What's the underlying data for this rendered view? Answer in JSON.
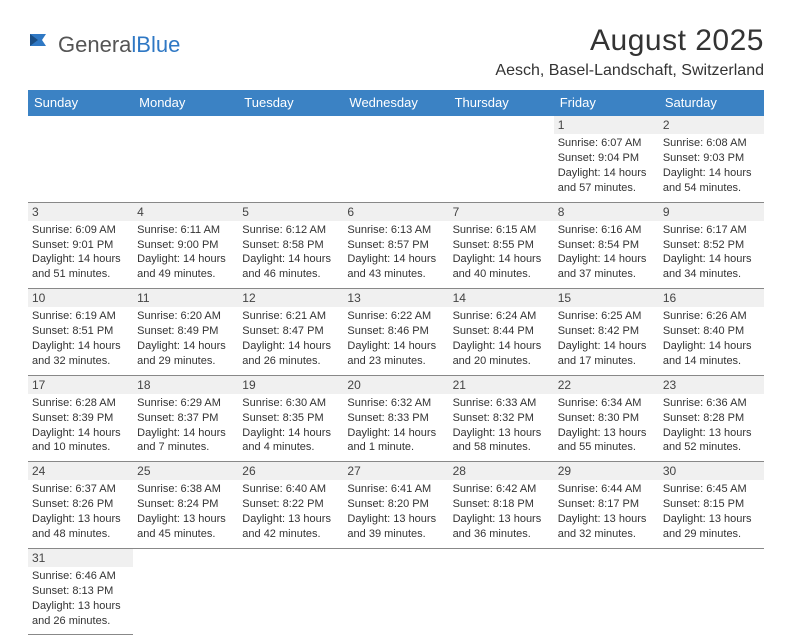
{
  "logo": {
    "text1": "Genera",
    "text2": "lBlue"
  },
  "title": "August 2025",
  "location": "Aesch, Basel-Landschaft, Switzerland",
  "colors": {
    "header_bg": "#3b82c4",
    "header_text": "#ffffff",
    "row_border": "#3b82c4",
    "daynum_bg": "#f0f0f0",
    "text": "#333333",
    "logo_gray": "#555555",
    "logo_blue": "#2f78c4"
  },
  "typography": {
    "title_fontsize": 30,
    "location_fontsize": 16,
    "header_fontsize": 13,
    "cell_fontsize": 11,
    "daynum_fontsize": 12
  },
  "day_headers": [
    "Sunday",
    "Monday",
    "Tuesday",
    "Wednesday",
    "Thursday",
    "Friday",
    "Saturday"
  ],
  "weeks": [
    [
      null,
      null,
      null,
      null,
      null,
      {
        "n": "1",
        "sunrise": "Sunrise: 6:07 AM",
        "sunset": "Sunset: 9:04 PM",
        "day1": "Daylight: 14 hours",
        "day2": "and 57 minutes."
      },
      {
        "n": "2",
        "sunrise": "Sunrise: 6:08 AM",
        "sunset": "Sunset: 9:03 PM",
        "day1": "Daylight: 14 hours",
        "day2": "and 54 minutes."
      }
    ],
    [
      {
        "n": "3",
        "sunrise": "Sunrise: 6:09 AM",
        "sunset": "Sunset: 9:01 PM",
        "day1": "Daylight: 14 hours",
        "day2": "and 51 minutes."
      },
      {
        "n": "4",
        "sunrise": "Sunrise: 6:11 AM",
        "sunset": "Sunset: 9:00 PM",
        "day1": "Daylight: 14 hours",
        "day2": "and 49 minutes."
      },
      {
        "n": "5",
        "sunrise": "Sunrise: 6:12 AM",
        "sunset": "Sunset: 8:58 PM",
        "day1": "Daylight: 14 hours",
        "day2": "and 46 minutes."
      },
      {
        "n": "6",
        "sunrise": "Sunrise: 6:13 AM",
        "sunset": "Sunset: 8:57 PM",
        "day1": "Daylight: 14 hours",
        "day2": "and 43 minutes."
      },
      {
        "n": "7",
        "sunrise": "Sunrise: 6:15 AM",
        "sunset": "Sunset: 8:55 PM",
        "day1": "Daylight: 14 hours",
        "day2": "and 40 minutes."
      },
      {
        "n": "8",
        "sunrise": "Sunrise: 6:16 AM",
        "sunset": "Sunset: 8:54 PM",
        "day1": "Daylight: 14 hours",
        "day2": "and 37 minutes."
      },
      {
        "n": "9",
        "sunrise": "Sunrise: 6:17 AM",
        "sunset": "Sunset: 8:52 PM",
        "day1": "Daylight: 14 hours",
        "day2": "and 34 minutes."
      }
    ],
    [
      {
        "n": "10",
        "sunrise": "Sunrise: 6:19 AM",
        "sunset": "Sunset: 8:51 PM",
        "day1": "Daylight: 14 hours",
        "day2": "and 32 minutes."
      },
      {
        "n": "11",
        "sunrise": "Sunrise: 6:20 AM",
        "sunset": "Sunset: 8:49 PM",
        "day1": "Daylight: 14 hours",
        "day2": "and 29 minutes."
      },
      {
        "n": "12",
        "sunrise": "Sunrise: 6:21 AM",
        "sunset": "Sunset: 8:47 PM",
        "day1": "Daylight: 14 hours",
        "day2": "and 26 minutes."
      },
      {
        "n": "13",
        "sunrise": "Sunrise: 6:22 AM",
        "sunset": "Sunset: 8:46 PM",
        "day1": "Daylight: 14 hours",
        "day2": "and 23 minutes."
      },
      {
        "n": "14",
        "sunrise": "Sunrise: 6:24 AM",
        "sunset": "Sunset: 8:44 PM",
        "day1": "Daylight: 14 hours",
        "day2": "and 20 minutes."
      },
      {
        "n": "15",
        "sunrise": "Sunrise: 6:25 AM",
        "sunset": "Sunset: 8:42 PM",
        "day1": "Daylight: 14 hours",
        "day2": "and 17 minutes."
      },
      {
        "n": "16",
        "sunrise": "Sunrise: 6:26 AM",
        "sunset": "Sunset: 8:40 PM",
        "day1": "Daylight: 14 hours",
        "day2": "and 14 minutes."
      }
    ],
    [
      {
        "n": "17",
        "sunrise": "Sunrise: 6:28 AM",
        "sunset": "Sunset: 8:39 PM",
        "day1": "Daylight: 14 hours",
        "day2": "and 10 minutes."
      },
      {
        "n": "18",
        "sunrise": "Sunrise: 6:29 AM",
        "sunset": "Sunset: 8:37 PM",
        "day1": "Daylight: 14 hours",
        "day2": "and 7 minutes."
      },
      {
        "n": "19",
        "sunrise": "Sunrise: 6:30 AM",
        "sunset": "Sunset: 8:35 PM",
        "day1": "Daylight: 14 hours",
        "day2": "and 4 minutes."
      },
      {
        "n": "20",
        "sunrise": "Sunrise: 6:32 AM",
        "sunset": "Sunset: 8:33 PM",
        "day1": "Daylight: 14 hours",
        "day2": "and 1 minute."
      },
      {
        "n": "21",
        "sunrise": "Sunrise: 6:33 AM",
        "sunset": "Sunset: 8:32 PM",
        "day1": "Daylight: 13 hours",
        "day2": "and 58 minutes."
      },
      {
        "n": "22",
        "sunrise": "Sunrise: 6:34 AM",
        "sunset": "Sunset: 8:30 PM",
        "day1": "Daylight: 13 hours",
        "day2": "and 55 minutes."
      },
      {
        "n": "23",
        "sunrise": "Sunrise: 6:36 AM",
        "sunset": "Sunset: 8:28 PM",
        "day1": "Daylight: 13 hours",
        "day2": "and 52 minutes."
      }
    ],
    [
      {
        "n": "24",
        "sunrise": "Sunrise: 6:37 AM",
        "sunset": "Sunset: 8:26 PM",
        "day1": "Daylight: 13 hours",
        "day2": "and 48 minutes."
      },
      {
        "n": "25",
        "sunrise": "Sunrise: 6:38 AM",
        "sunset": "Sunset: 8:24 PM",
        "day1": "Daylight: 13 hours",
        "day2": "and 45 minutes."
      },
      {
        "n": "26",
        "sunrise": "Sunrise: 6:40 AM",
        "sunset": "Sunset: 8:22 PM",
        "day1": "Daylight: 13 hours",
        "day2": "and 42 minutes."
      },
      {
        "n": "27",
        "sunrise": "Sunrise: 6:41 AM",
        "sunset": "Sunset: 8:20 PM",
        "day1": "Daylight: 13 hours",
        "day2": "and 39 minutes."
      },
      {
        "n": "28",
        "sunrise": "Sunrise: 6:42 AM",
        "sunset": "Sunset: 8:18 PM",
        "day1": "Daylight: 13 hours",
        "day2": "and 36 minutes."
      },
      {
        "n": "29",
        "sunrise": "Sunrise: 6:44 AM",
        "sunset": "Sunset: 8:17 PM",
        "day1": "Daylight: 13 hours",
        "day2": "and 32 minutes."
      },
      {
        "n": "30",
        "sunrise": "Sunrise: 6:45 AM",
        "sunset": "Sunset: 8:15 PM",
        "day1": "Daylight: 13 hours",
        "day2": "and 29 minutes."
      }
    ],
    [
      {
        "n": "31",
        "sunrise": "Sunrise: 6:46 AM",
        "sunset": "Sunset: 8:13 PM",
        "day1": "Daylight: 13 hours",
        "day2": "and 26 minutes."
      },
      null,
      null,
      null,
      null,
      null,
      null
    ]
  ]
}
